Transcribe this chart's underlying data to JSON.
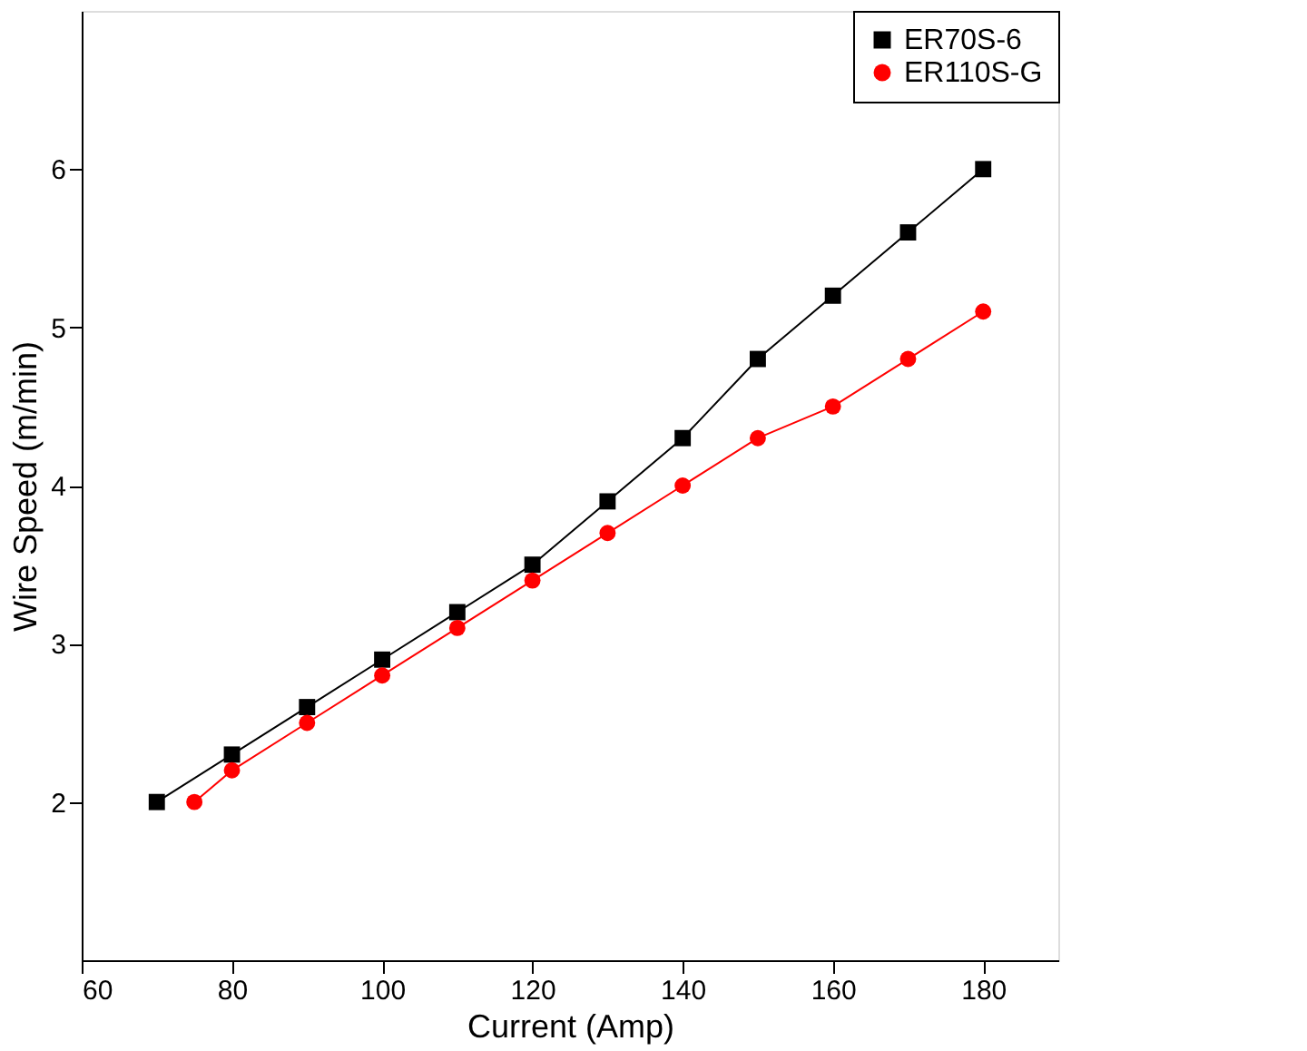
{
  "chart_data": {
    "type": "line",
    "xlabel": "Current (Amp)",
    "ylabel": "Wire Speed (m/min)",
    "xlim": [
      60,
      190
    ],
    "xticks": [
      60,
      80,
      100,
      120,
      140,
      160,
      180
    ],
    "ylim": [
      1,
      7
    ],
    "yticks": [
      2,
      3,
      4,
      5,
      6
    ],
    "grid": false,
    "legend": "top right",
    "series": [
      {
        "name": "ER70S-6",
        "color": "#000000",
        "marker": "square",
        "x": [
          70,
          80,
          90,
          100,
          110,
          120,
          130,
          140,
          150,
          160,
          170,
          180
        ],
        "values": [
          2.0,
          2.3,
          2.6,
          2.9,
          3.2,
          3.5,
          3.9,
          4.3,
          4.8,
          5.2,
          5.6,
          6.0
        ]
      },
      {
        "name": "ER110S-G",
        "color": "#ff0000",
        "marker": "circle",
        "x": [
          75,
          80,
          90,
          100,
          110,
          120,
          130,
          140,
          150,
          160,
          170,
          180
        ],
        "values": [
          2.0,
          2.2,
          2.5,
          2.8,
          3.1,
          3.4,
          3.7,
          4.0,
          4.3,
          4.5,
          4.8,
          5.1
        ]
      }
    ]
  }
}
